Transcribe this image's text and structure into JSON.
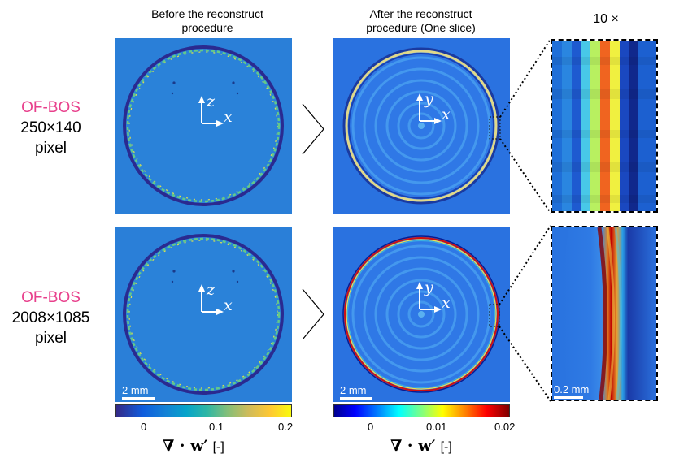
{
  "headers": {
    "before": "Before the reconstruct\nprocedure",
    "after": "After the reconstruct\nprocedure (One slice)",
    "zoom": "10 ×"
  },
  "rows": [
    {
      "method": "OF-BOS",
      "resolution": "250×140",
      "unit": "pixel"
    },
    {
      "method": "OF-BOS",
      "resolution": "2008×1085",
      "unit": "pixel"
    }
  ],
  "axes": {
    "before": {
      "vertical": "z",
      "horizontal": "x"
    },
    "after": {
      "vertical": "y",
      "horizontal": "x"
    }
  },
  "scalebars": {
    "main": "2 mm",
    "zoom": "0.2 mm"
  },
  "colorbars": [
    {
      "ticks": [
        "0",
        "0.1",
        "0.2"
      ],
      "label": "∇ · w′",
      "unit": "[-]",
      "colormap": "parula"
    },
    {
      "ticks": [
        "0",
        "0.01",
        "0.02"
      ],
      "label": "∇ · w′",
      "unit": "[-]",
      "colormap": "jet"
    }
  ],
  "colors": {
    "ofbos": "#e8408c",
    "background_field": "#2a7fd8"
  }
}
